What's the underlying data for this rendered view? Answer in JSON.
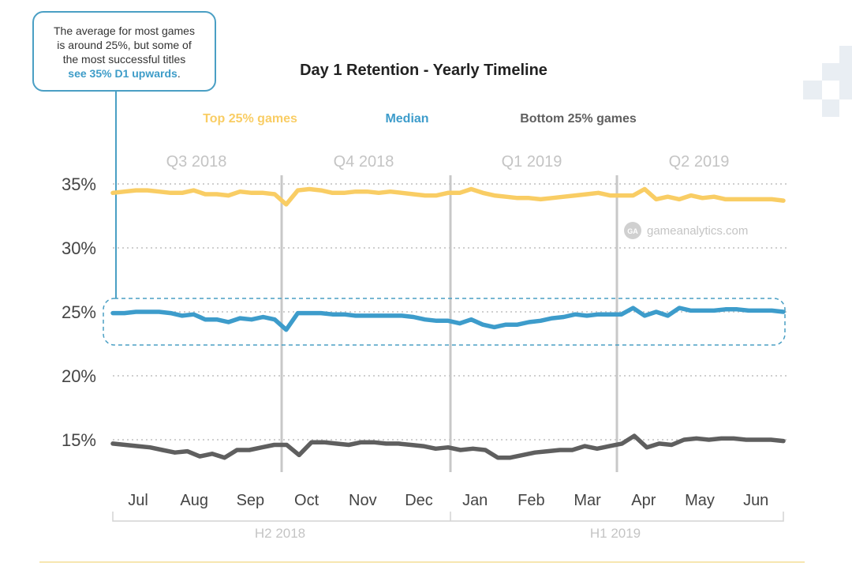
{
  "callout": {
    "lines": [
      "The average for most games",
      "is around 25%, but some of",
      "the most successful titles"
    ],
    "highlight": "see 35% D1 upwards",
    "suffix": "."
  },
  "watermark": "gameanalytics.com",
  "watermark_logo": "GA",
  "colors": {
    "top": "#f9cd64",
    "median": "#3d9ccb",
    "bottom": "#5f5f5f",
    "accent": "#4a9fc4"
  },
  "chart_data": {
    "type": "line",
    "title": "Day 1 Retention - Yearly Timeline",
    "xlabel": "",
    "ylabel": "",
    "ylim": [
      12,
      37
    ],
    "yticks": [
      15,
      20,
      25,
      30,
      35
    ],
    "ytick_labels": [
      "15%",
      "20%",
      "25%",
      "30%",
      "35%"
    ],
    "grid": true,
    "legend_position": "top",
    "months": [
      "Jul",
      "Aug",
      "Sep",
      "Oct",
      "Nov",
      "Dec",
      "Jan",
      "Feb",
      "Mar",
      "Apr",
      "May",
      "Jun"
    ],
    "quarters": [
      "Q3 2018",
      "Q4 2018",
      "Q1 2019",
      "Q2 2019"
    ],
    "halves": [
      "H2 2018",
      "H1 2019"
    ],
    "series": [
      {
        "name": "Top 25% games",
        "values": [
          34.3,
          34.4,
          34.5,
          34.5,
          34.4,
          34.3,
          34.3,
          34.5,
          34.2,
          34.2,
          34.1,
          34.4,
          34.3,
          34.3,
          34.2,
          33.4,
          34.5,
          34.6,
          34.5,
          34.3,
          34.3,
          34.4,
          34.4,
          34.3,
          34.4,
          34.3,
          34.2,
          34.1,
          34.1,
          34.3,
          34.3,
          34.6,
          34.3,
          34.1,
          34.0,
          33.9,
          33.9,
          33.8,
          33.9,
          34.0,
          34.1,
          34.2,
          34.3,
          34.1,
          34.1,
          34.1,
          34.6,
          33.8,
          34.0,
          33.8,
          34.1,
          33.9,
          34.0,
          33.8,
          33.8,
          33.8,
          33.8,
          33.8,
          33.7
        ]
      },
      {
        "name": "Median",
        "values": [
          24.9,
          24.9,
          25.0,
          25.0,
          25.0,
          24.9,
          24.7,
          24.8,
          24.4,
          24.4,
          24.2,
          24.5,
          24.4,
          24.6,
          24.4,
          23.6,
          24.9,
          24.9,
          24.9,
          24.8,
          24.8,
          24.7,
          24.7,
          24.7,
          24.7,
          24.7,
          24.6,
          24.4,
          24.3,
          24.3,
          24.1,
          24.4,
          24.0,
          23.8,
          24.0,
          24.0,
          24.2,
          24.3,
          24.5,
          24.6,
          24.8,
          24.7,
          24.8,
          24.8,
          24.8,
          25.3,
          24.7,
          25.0,
          24.7,
          25.3,
          25.1,
          25.1,
          25.1,
          25.2,
          25.2,
          25.1,
          25.1,
          25.1,
          25.0
        ]
      },
      {
        "name": "Bottom 25% games",
        "values": [
          14.7,
          14.6,
          14.5,
          14.4,
          14.2,
          14.0,
          14.1,
          13.7,
          13.9,
          13.6,
          14.2,
          14.2,
          14.4,
          14.6,
          14.6,
          13.8,
          14.8,
          14.8,
          14.7,
          14.6,
          14.8,
          14.8,
          14.7,
          14.7,
          14.6,
          14.5,
          14.3,
          14.4,
          14.2,
          14.3,
          14.2,
          13.6,
          13.6,
          13.8,
          14.0,
          14.1,
          14.2,
          14.2,
          14.5,
          14.3,
          14.5,
          14.7,
          15.3,
          14.4,
          14.7,
          14.6,
          15.0,
          15.1,
          15.0,
          15.1,
          15.1,
          15.0,
          15.0,
          15.0,
          14.9
        ]
      }
    ]
  }
}
